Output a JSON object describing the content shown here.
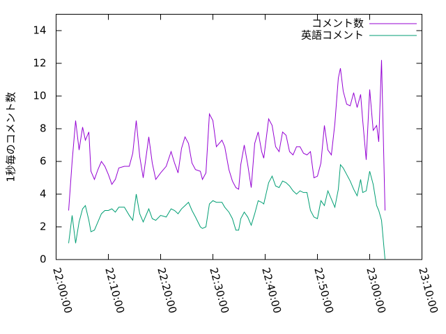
{
  "chart_data": {
    "type": "line",
    "y_label": "1秒毎のコメント数",
    "x": [
      "22:02:24",
      "22:03:04",
      "22:03:44",
      "22:04:24",
      "22:05:04",
      "22:05:36",
      "22:06:16",
      "22:06:40",
      "22:07:20",
      "22:08:00",
      "22:08:40",
      "22:09:20",
      "22:10:00",
      "22:10:40",
      "22:11:20",
      "22:12:00",
      "22:13:04",
      "22:14:00",
      "22:14:40",
      "22:15:20",
      "22:16:00",
      "22:16:40",
      "22:17:44",
      "22:18:24",
      "22:19:04",
      "22:20:00",
      "22:21:04",
      "22:22:00",
      "22:22:40",
      "22:23:20",
      "22:24:00",
      "22:24:40",
      "22:25:20",
      "22:26:00",
      "22:26:40",
      "22:27:36",
      "22:28:00",
      "22:28:40",
      "22:29:20",
      "22:30:00",
      "22:30:40",
      "22:31:44",
      "22:32:16",
      "22:33:04",
      "22:33:44",
      "22:34:24",
      "22:34:56",
      "22:35:20",
      "22:36:00",
      "22:36:40",
      "22:37:20",
      "22:38:00",
      "22:38:40",
      "22:39:20",
      "22:39:44",
      "22:40:40",
      "22:41:20",
      "22:42:00",
      "22:42:40",
      "22:43:20",
      "22:44:00",
      "22:44:40",
      "22:45:20",
      "22:46:00",
      "22:46:40",
      "22:47:20",
      "22:48:00",
      "22:48:40",
      "22:49:20",
      "22:50:00",
      "22:50:40",
      "22:51:20",
      "22:52:00",
      "22:52:40",
      "22:53:20",
      "22:54:00",
      "22:54:24",
      "22:54:56",
      "22:55:36",
      "22:56:16",
      "22:56:56",
      "22:57:36",
      "22:58:16",
      "22:58:40",
      "22:59:20",
      "23:00:00",
      "23:00:40",
      "23:01:20",
      "23:01:44",
      "23:02:16",
      "23:02:56"
    ],
    "series": [
      {
        "name": "コメント数",
        "color": "#9400d3",
        "values": [
          3,
          6,
          8.5,
          6.7,
          8.1,
          7.3,
          7.8,
          5.4,
          4.9,
          5.5,
          6.0,
          5.7,
          5.2,
          4.6,
          4.9,
          5.6,
          5.7,
          5.7,
          6.5,
          8.5,
          6.3,
          5.0,
          7.5,
          5.9,
          4.9,
          5.3,
          5.7,
          6.6,
          5.9,
          5.3,
          6.8,
          7.5,
          7.1,
          5.9,
          5.5,
          5.4,
          4.9,
          5.3,
          8.9,
          8.5,
          6.9,
          7.3,
          6.9,
          5.5,
          4.8,
          4.4,
          4.3,
          5.8,
          7.0,
          5.8,
          4.4,
          7.1,
          7.8,
          6.6,
          6.2,
          8.6,
          8.2,
          6.9,
          6.6,
          7.8,
          7.6,
          6.6,
          6.4,
          6.9,
          6.9,
          6.5,
          6.4,
          6.6,
          5.0,
          5.1,
          5.9,
          8.2,
          6.7,
          6.4,
          8.3,
          11.1,
          11.7,
          10.3,
          9.5,
          9.4,
          10.2,
          9.3,
          10.1,
          8.5,
          6.1,
          10.4,
          7.9,
          8.2,
          7.2,
          12.2,
          3.0
        ]
      },
      {
        "name": "英語コメント",
        "color": "#009e73",
        "values": [
          1.0,
          2.7,
          1.0,
          2.3,
          3.1,
          3.3,
          2.4,
          1.7,
          1.8,
          2.3,
          2.8,
          3.0,
          3.0,
          3.1,
          2.9,
          3.2,
          3.2,
          2.7,
          2.4,
          4.0,
          2.8,
          2.3,
          3.1,
          2.5,
          2.4,
          2.7,
          2.6,
          3.1,
          3.0,
          2.8,
          3.1,
          3.3,
          3.5,
          3.0,
          2.6,
          2.0,
          1.9,
          2.0,
          3.4,
          3.6,
          3.5,
          3.5,
          3.2,
          2.9,
          2.5,
          1.8,
          1.8,
          2.5,
          2.9,
          2.6,
          2.1,
          2.8,
          3.6,
          3.5,
          3.4,
          4.7,
          5.1,
          4.5,
          4.4,
          4.8,
          4.7,
          4.5,
          4.2,
          4.0,
          4.2,
          4.1,
          4.1,
          3.0,
          2.6,
          2.5,
          3.6,
          3.3,
          4.2,
          3.7,
          3.2,
          4.3,
          5.8,
          5.6,
          5.2,
          4.8,
          4.3,
          3.9,
          4.9,
          4.1,
          4.2,
          5.4,
          4.6,
          3.3,
          3.0,
          2.4,
          0
        ]
      }
    ],
    "xlim": [
      "22:00:00",
      "23:10:00"
    ],
    "xticks": [
      "22:00:00",
      "22:10:00",
      "22:20:00",
      "22:30:00",
      "22:40:00",
      "22:50:00",
      "23:00:00",
      "23:10:00"
    ],
    "ylim": [
      0,
      15
    ],
    "yticks": [
      0,
      2,
      4,
      6,
      8,
      10,
      12,
      14
    ],
    "legend": "top-right"
  }
}
